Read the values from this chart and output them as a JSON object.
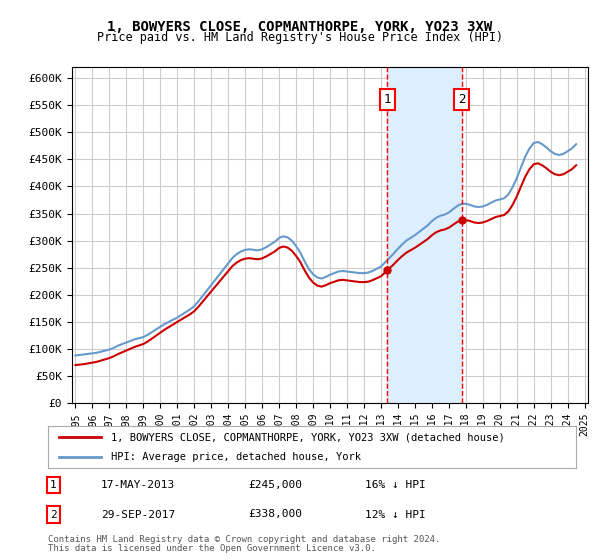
{
  "title": "1, BOWYERS CLOSE, COPMANTHORPE, YORK, YO23 3XW",
  "subtitle": "Price paid vs. HM Land Registry's House Price Index (HPI)",
  "ylabel": "",
  "xlabel": "",
  "ylim": [
    0,
    620000
  ],
  "yticks": [
    0,
    50000,
    100000,
    150000,
    200000,
    250000,
    300000,
    350000,
    400000,
    450000,
    500000,
    550000,
    600000
  ],
  "ytick_labels": [
    "£0",
    "£50K",
    "£100K",
    "£150K",
    "£200K",
    "£250K",
    "£300K",
    "£350K",
    "£400K",
    "£450K",
    "£500K",
    "£550K",
    "£600K"
  ],
  "transaction1": {
    "date_label": "17-MAY-2013",
    "price": 245000,
    "date_x": 2013.37,
    "label": "1"
  },
  "transaction2": {
    "date_label": "29-SEP-2017",
    "price": 338000,
    "date_x": 2017.75,
    "label": "2"
  },
  "legend_property": "1, BOWYERS CLOSE, COPMANTHORPE, YORK, YO23 3XW (detached house)",
  "legend_hpi": "HPI: Average price, detached house, York",
  "footer1": "Contains HM Land Registry data © Crown copyright and database right 2024.",
  "footer2": "This data is licensed under the Open Government Licence v3.0.",
  "table_row1": [
    "1",
    "17-MAY-2013",
    "£245,000",
    "16% ↓ HPI"
  ],
  "table_row2": [
    "2",
    "29-SEP-2017",
    "£338,000",
    "12% ↓ HPI"
  ],
  "property_color": "#cc0000",
  "hpi_color": "#6699cc",
  "shade_color": "#ddeeff",
  "background_color": "#ffffff",
  "grid_color": "#cccccc",
  "hpi_data_x": [
    1995,
    1995.25,
    1995.5,
    1995.75,
    1996,
    1996.25,
    1996.5,
    1996.75,
    1997,
    1997.25,
    1997.5,
    1997.75,
    1998,
    1998.25,
    1998.5,
    1998.75,
    1999,
    1999.25,
    1999.5,
    1999.75,
    2000,
    2000.25,
    2000.5,
    2000.75,
    2001,
    2001.25,
    2001.5,
    2001.75,
    2002,
    2002.25,
    2002.5,
    2002.75,
    2003,
    2003.25,
    2003.5,
    2003.75,
    2004,
    2004.25,
    2004.5,
    2004.75,
    2005,
    2005.25,
    2005.5,
    2005.75,
    2006,
    2006.25,
    2006.5,
    2006.75,
    2007,
    2007.25,
    2007.5,
    2007.75,
    2008,
    2008.25,
    2008.5,
    2008.75,
    2009,
    2009.25,
    2009.5,
    2009.75,
    2010,
    2010.25,
    2010.5,
    2010.75,
    2011,
    2011.25,
    2011.5,
    2011.75,
    2012,
    2012.25,
    2012.5,
    2012.75,
    2013,
    2013.25,
    2013.5,
    2013.75,
    2014,
    2014.25,
    2014.5,
    2014.75,
    2015,
    2015.25,
    2015.5,
    2015.75,
    2016,
    2016.25,
    2016.5,
    2016.75,
    2017,
    2017.25,
    2017.5,
    2017.75,
    2018,
    2018.25,
    2018.5,
    2018.75,
    2019,
    2019.25,
    2019.5,
    2019.75,
    2020,
    2020.25,
    2020.5,
    2020.75,
    2021,
    2021.25,
    2021.5,
    2021.75,
    2022,
    2022.25,
    2022.5,
    2022.75,
    2023,
    2023.25,
    2023.5,
    2023.75,
    2024,
    2024.25,
    2024.5
  ],
  "hpi_data_y": [
    88000,
    89000,
    90000,
    91000,
    92000,
    93000,
    95000,
    97000,
    99000,
    102000,
    106000,
    109000,
    112000,
    115000,
    118000,
    120000,
    122000,
    126000,
    131000,
    136000,
    141000,
    146000,
    150000,
    154000,
    158000,
    163000,
    168000,
    173000,
    179000,
    188000,
    198000,
    208000,
    218000,
    228000,
    238000,
    248000,
    258000,
    268000,
    275000,
    280000,
    283000,
    284000,
    283000,
    282000,
    284000,
    288000,
    293000,
    298000,
    305000,
    308000,
    306000,
    300000,
    290000,
    278000,
    262000,
    248000,
    238000,
    232000,
    230000,
    233000,
    237000,
    240000,
    243000,
    244000,
    243000,
    242000,
    241000,
    240000,
    240000,
    241000,
    244000,
    248000,
    252000,
    260000,
    268000,
    276000,
    285000,
    293000,
    300000,
    305000,
    310000,
    316000,
    322000,
    328000,
    336000,
    342000,
    346000,
    348000,
    352000,
    358000,
    364000,
    368000,
    368000,
    366000,
    363000,
    362000,
    363000,
    366000,
    370000,
    374000,
    376000,
    378000,
    385000,
    398000,
    415000,
    435000,
    455000,
    470000,
    480000,
    482000,
    478000,
    472000,
    465000,
    460000,
    458000,
    460000,
    465000,
    470000,
    478000
  ],
  "property_data_x": [
    1995.5,
    2001.0,
    2013.37,
    2017.75
  ],
  "property_data_y": [
    72000,
    150000,
    245000,
    338000
  ],
  "xlim": [
    1994.8,
    2025.2
  ],
  "xticks": [
    1995,
    1996,
    1997,
    1998,
    1999,
    2000,
    2001,
    2002,
    2003,
    2004,
    2005,
    2006,
    2007,
    2008,
    2009,
    2010,
    2011,
    2012,
    2013,
    2014,
    2015,
    2016,
    2017,
    2018,
    2019,
    2020,
    2021,
    2022,
    2023,
    2024,
    2025
  ]
}
